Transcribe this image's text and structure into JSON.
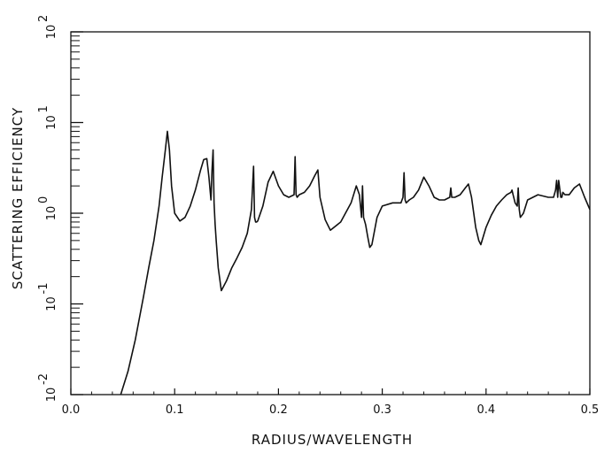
{
  "chart_data": {
    "type": "line",
    "title": "",
    "xlabel": "RADIUS/WAVELENGTH",
    "ylabel": "SCATTERING EFFICIENCY",
    "xlim": [
      0.0,
      0.5
    ],
    "ylim": [
      0.01,
      100
    ],
    "yscale": "log",
    "grid": false,
    "legend": "none",
    "x_ticks": [
      "0.0",
      "0.1",
      "0.2",
      "0.3",
      "0.4",
      "0.5"
    ],
    "y_ticks": [
      {
        "base": "10",
        "exp": "-2"
      },
      {
        "base": "10",
        "exp": "-1"
      },
      {
        "base": "10",
        "exp": "0"
      },
      {
        "base": "10",
        "exp": "1"
      },
      {
        "base": "10",
        "exp": "2"
      }
    ],
    "series": [
      {
        "x": [
          0.048,
          0.055,
          0.062,
          0.07,
          0.075,
          0.08,
          0.085,
          0.088,
          0.091,
          0.093,
          0.095,
          0.097,
          0.1,
          0.105,
          0.11,
          0.115,
          0.12,
          0.125,
          0.128,
          0.131,
          0.133,
          0.135,
          0.136,
          0.137,
          0.138,
          0.139,
          0.14,
          0.142,
          0.145,
          0.15,
          0.155,
          0.16,
          0.165,
          0.17,
          0.174,
          0.176,
          0.177,
          0.178,
          0.179,
          0.18,
          0.185,
          0.19,
          0.195,
          0.2,
          0.205,
          0.21,
          0.215,
          0.216,
          0.217,
          0.218,
          0.22,
          0.225,
          0.23,
          0.235,
          0.238,
          0.24,
          0.245,
          0.25,
          0.26,
          0.27,
          0.275,
          0.278,
          0.28,
          0.281,
          0.282,
          0.284,
          0.286,
          0.288,
          0.29,
          0.295,
          0.3,
          0.31,
          0.318,
          0.32,
          0.321,
          0.322,
          0.323,
          0.326,
          0.33,
          0.335,
          0.34,
          0.345,
          0.35,
          0.355,
          0.36,
          0.365,
          0.366,
          0.367,
          0.37,
          0.375,
          0.38,
          0.383,
          0.386,
          0.39,
          0.393,
          0.395,
          0.4,
          0.405,
          0.41,
          0.415,
          0.42,
          0.424,
          0.425,
          0.426,
          0.428,
          0.43,
          0.431,
          0.432,
          0.433,
          0.436,
          0.44,
          0.45,
          0.46,
          0.465,
          0.467,
          0.468,
          0.469,
          0.47,
          0.472,
          0.473,
          0.474,
          0.476,
          0.48,
          0.485,
          0.49,
          0.495,
          0.5
        ],
        "y": [
          0.01,
          0.018,
          0.04,
          0.12,
          0.25,
          0.5,
          1.2,
          2.5,
          5,
          8,
          5,
          2,
          1,
          0.82,
          0.9,
          1.2,
          1.8,
          3,
          3.9,
          4,
          2.5,
          1.4,
          3,
          5,
          1.3,
          0.75,
          0.5,
          0.25,
          0.14,
          0.18,
          0.25,
          0.32,
          0.42,
          0.6,
          1.1,
          3.3,
          0.9,
          0.8,
          0.8,
          0.82,
          1.2,
          2.2,
          2.9,
          2,
          1.6,
          1.5,
          1.6,
          4.2,
          1.6,
          1.5,
          1.6,
          1.7,
          2,
          2.6,
          3,
          1.5,
          0.85,
          0.65,
          0.8,
          1.3,
          2,
          1.6,
          0.9,
          2,
          0.9,
          0.75,
          0.55,
          0.42,
          0.45,
          0.9,
          1.2,
          1.3,
          1.3,
          1.5,
          2.8,
          1.4,
          1.3,
          1.4,
          1.5,
          1.8,
          2.5,
          2,
          1.5,
          1.4,
          1.4,
          1.5,
          1.9,
          1.5,
          1.5,
          1.6,
          1.9,
          2.1,
          1.5,
          0.7,
          0.5,
          0.45,
          0.7,
          0.95,
          1.2,
          1.4,
          1.6,
          1.7,
          1.8,
          1.6,
          1.3,
          1.2,
          1.9,
          1.1,
          0.9,
          1,
          1.4,
          1.6,
          1.5,
          1.5,
          1.8,
          2.3,
          1.5,
          2.3,
          1.5,
          1.5,
          1.7,
          1.6,
          1.6,
          1.9,
          2.1,
          1.5,
          1.1
        ]
      }
    ]
  }
}
